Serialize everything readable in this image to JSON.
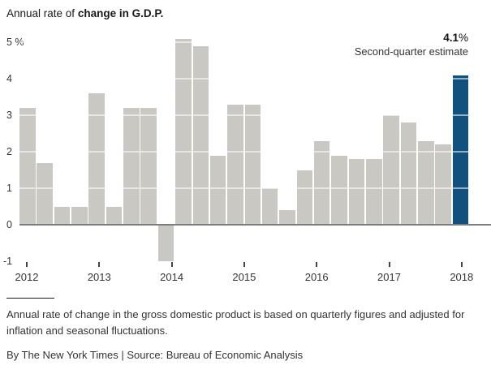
{
  "title": {
    "regular": "Annual rate of ",
    "bold": "change in G.D.P."
  },
  "annotation": {
    "value": "4.1",
    "unit": "%",
    "label": "Second-quarter estimate"
  },
  "chart_data": {
    "type": "bar",
    "title": "Annual rate of change in G.D.P.",
    "value_unit": "percent, annual rate",
    "ylim": [
      -1,
      5
    ],
    "xlabel": "",
    "ylabel": "",
    "legend": "none",
    "y_ticks": [
      {
        "label": "5 %",
        "value": 5
      },
      {
        "label": "4",
        "value": 4
      },
      {
        "label": "3",
        "value": 3
      },
      {
        "label": "2",
        "value": 2
      },
      {
        "label": "1",
        "value": 1
      },
      {
        "label": "0",
        "value": 0
      },
      {
        "label": "-1",
        "value": -1
      }
    ],
    "x_ticks": [
      "2012",
      "2013",
      "2014",
      "2015",
      "2016",
      "2017",
      "2018"
    ],
    "categories": [
      "2012 Q1",
      "2012 Q2",
      "2012 Q3",
      "2012 Q4",
      "2013 Q1",
      "2013 Q2",
      "2013 Q3",
      "2013 Q4",
      "2014 Q1",
      "2014 Q2",
      "2014 Q3",
      "2014 Q4",
      "2015 Q1",
      "2015 Q2",
      "2015 Q3",
      "2015 Q4",
      "2016 Q1",
      "2016 Q2",
      "2016 Q3",
      "2016 Q4",
      "2017 Q1",
      "2017 Q2",
      "2017 Q3",
      "2017 Q4",
      "2018 Q1",
      "2018 Q2"
    ],
    "values": [
      3.2,
      1.7,
      0.5,
      0.5,
      3.6,
      0.5,
      3.2,
      3.2,
      -1.0,
      5.1,
      4.9,
      1.9,
      3.3,
      3.3,
      1.0,
      0.4,
      1.5,
      2.3,
      1.9,
      1.8,
      1.8,
      3.0,
      2.8,
      2.3,
      2.2,
      4.1
    ],
    "highlight": {
      "category": "2018 Q2",
      "value": 4.1,
      "note": "Second-quarter estimate"
    },
    "colors": {
      "bar": "#c9c8c2",
      "highlight": "#12507d",
      "axis_line": "#7d7d7d",
      "gridline_over_bars": "rgba(255,255,255,0.55)"
    }
  },
  "notes": {
    "description": "Annual rate of change in the gross domestic product is based on quarterly figures and adjusted for inflation and seasonal fluctuations.",
    "byline": "By The New York Times | Source: Bureau of Economic Analysis"
  }
}
